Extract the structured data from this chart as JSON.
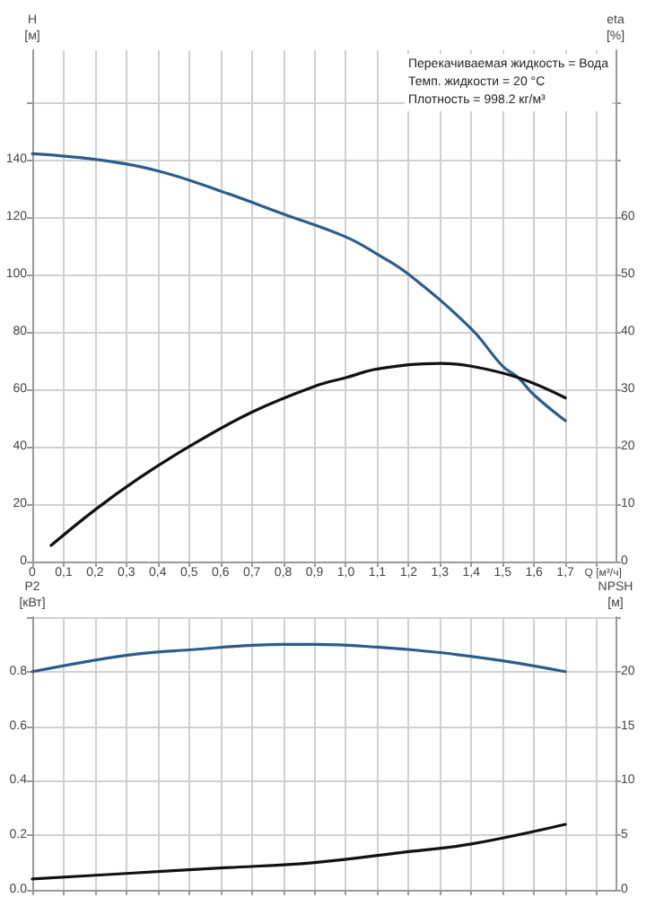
{
  "chart_data": [
    {
      "type": "line",
      "xlabel": "Q [м³/ч]",
      "ylabel": "H\n[м]",
      "y2label": "eta\n[%]",
      "grid": true,
      "annotations": [
        "Перекачиваемая жидкость = Вода",
        "Темп. жидкости = 20 °C",
        "Плотность = 998.2 кг/м³"
      ],
      "xlim": [
        0,
        1.86
      ],
      "xticks": [
        0,
        {
          "value": 0.1,
          "label": "0,1"
        },
        {
          "value": 0.2,
          "label": "0,2"
        },
        {
          "value": 0.3,
          "label": "0,3"
        },
        {
          "value": 0.4,
          "label": "0,4"
        },
        {
          "value": 0.5,
          "label": "0,5"
        },
        {
          "value": 0.6,
          "label": "0,6"
        },
        {
          "value": 0.7,
          "label": "0,7"
        },
        {
          "value": 0.8,
          "label": "0,8"
        },
        {
          "value": 0.9,
          "label": "0,9"
        },
        {
          "value": 1.0,
          "label": "1,0"
        },
        {
          "value": 1.1,
          "label": "1,1"
        },
        {
          "value": 1.2,
          "label": "1,2"
        },
        {
          "value": 1.3,
          "label": "1,3"
        },
        {
          "value": 1.4,
          "label": "1,4"
        },
        {
          "value": 1.5,
          "label": "1,5"
        },
        {
          "value": 1.6,
          "label": "1,6"
        },
        {
          "value": 1.7,
          "label": "1,7"
        },
        {
          "value": 1.8,
          "label": null
        }
      ],
      "ylim": [
        0,
        178
      ],
      "yticks": [
        0,
        20,
        40,
        60,
        80,
        100,
        120,
        140,
        {
          "value": 160,
          "label": null
        }
      ],
      "y2lim": [
        0,
        89
      ],
      "y2ticks": [
        0,
        10,
        20,
        30,
        40,
        50,
        60,
        {
          "value": 70,
          "label": null
        },
        {
          "value": 80,
          "label": null
        }
      ],
      "series": [
        {
          "color": "#2b5d8c",
          "x": [
            0,
            0.2,
            0.4,
            0.6,
            0.8,
            1.0,
            1.1,
            1.2,
            1.4,
            1.5,
            1.55,
            1.6,
            1.7
          ],
          "values": [
            142,
            140,
            136,
            129,
            121,
            113,
            107,
            100,
            81,
            68,
            64,
            58,
            49
          ]
        },
        {
          "color": "#111111",
          "axis": "y2",
          "x": [
            0.06,
            0.2,
            0.34,
            0.5,
            0.7,
            0.9,
            1.0,
            1.1,
            1.3,
            1.4,
            1.55,
            1.7
          ],
          "values": [
            2.8,
            9,
            14.5,
            20,
            26,
            30.5,
            32,
            33.5,
            34.5,
            34,
            32,
            28.5
          ]
        }
      ]
    },
    {
      "type": "line",
      "ylabel": "P2\n[кВт]",
      "y2label": "NPSH\n[м]",
      "grid": true,
      "tick_labels": "y",
      "xlim": [
        0,
        1.86
      ],
      "xticks": [
        0,
        0.1,
        0.2,
        0.3,
        0.4,
        0.5,
        0.6,
        0.7,
        0.8,
        0.9,
        1.0,
        1.1,
        1.2,
        1.3,
        1.4,
        1.5,
        1.6,
        1.7,
        1.8
      ],
      "ylim": [
        0,
        1
      ],
      "yticks": [
        {
          "value": 0,
          "label": "0.0"
        },
        0.2,
        0.4,
        0.6,
        0.8,
        {
          "value": 1,
          "label": null
        }
      ],
      "y2lim": [
        0,
        25
      ],
      "y2ticks": [
        0,
        5,
        10,
        15,
        20,
        {
          "value": 25,
          "label": null
        }
      ],
      "series": [
        {
          "color": "#2b5d8c",
          "x": [
            0,
            0.3,
            0.5,
            0.8,
            0.9,
            1.1,
            1.3,
            1.5,
            1.7
          ],
          "values": [
            0.8,
            0.86,
            0.88,
            0.9,
            0.9,
            0.89,
            0.87,
            0.84,
            0.8
          ]
        },
        {
          "color": "#111111",
          "axis": "y2",
          "x": [
            0,
            0.3,
            0.6,
            0.9,
            1.2,
            1.4,
            1.7
          ],
          "values": [
            1,
            1.5,
            2,
            2.5,
            3.5,
            4.2,
            6
          ]
        }
      ]
    }
  ]
}
